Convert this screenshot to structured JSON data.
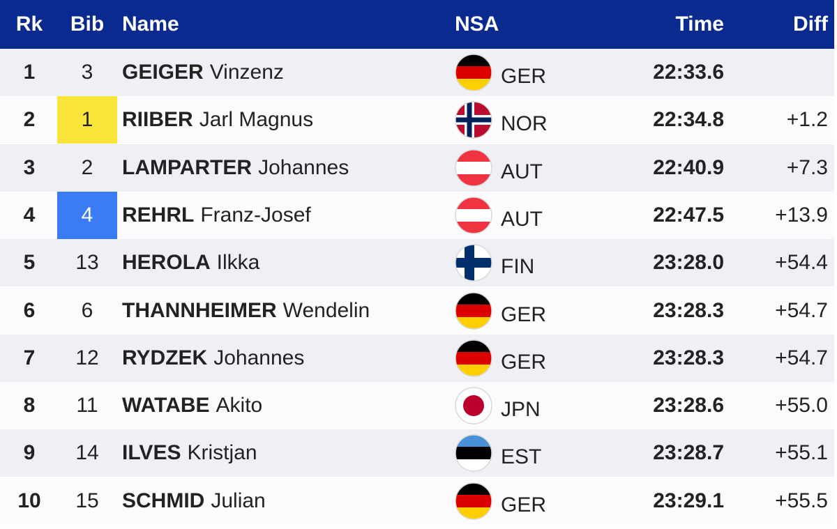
{
  "header": {
    "rk": "Rk",
    "bib": "Bib",
    "name": "Name",
    "nsa": "NSA",
    "time": "Time",
    "diff": "Diff"
  },
  "rows": [
    {
      "rk": "1",
      "bib": "3",
      "last": "GEIGER",
      "first": "Vinzenz",
      "nsa": "GER",
      "time": "22:33.6",
      "flag": {
        "kind": "stripes",
        "colors": [
          "#000000",
          "#dd0000",
          "#ffce00"
        ]
      }
    },
    {
      "rk": "2",
      "bib": "1",
      "bib_color": "#f9e43a",
      "last": "RIIBER",
      "first": "Jarl Magnus",
      "nsa": "NOR",
      "time": "22:34.8",
      "diff": "+1.2",
      "flag": {
        "kind": "cross",
        "colors": [
          "#ba0c2f",
          "#ffffff",
          "#00205b"
        ]
      }
    },
    {
      "rk": "3",
      "bib": "2",
      "last": "LAMPARTER",
      "first": "Johannes",
      "nsa": "AUT",
      "time": "22:40.9",
      "diff": "+7.3",
      "flag": {
        "kind": "stripes",
        "colors": [
          "#ef3340",
          "#ffffff",
          "#ef3340"
        ]
      }
    },
    {
      "rk": "4",
      "bib": "4",
      "bib_color": "#3b7bf5",
      "bib_text_color": "#ffffff",
      "last": "REHRL",
      "first": "Franz-Josef",
      "nsa": "AUT",
      "time": "22:47.5",
      "diff": "+13.9",
      "flag": {
        "kind": "stripes",
        "colors": [
          "#ef3340",
          "#ffffff",
          "#ef3340"
        ]
      }
    },
    {
      "rk": "5",
      "bib": "13",
      "last": "HEROLA",
      "first": "Ilkka",
      "nsa": "FIN",
      "time": "23:28.0",
      "diff": "+54.4",
      "flag": {
        "kind": "cross",
        "colors": [
          "#ffffff",
          "#002f6c",
          "#002f6c"
        ]
      }
    },
    {
      "rk": "6",
      "bib": "6",
      "last": "THANNHEIMER",
      "first": "Wendelin",
      "nsa": "GER",
      "time": "23:28.3",
      "diff": "+54.7",
      "flag": {
        "kind": "stripes",
        "colors": [
          "#000000",
          "#dd0000",
          "#ffce00"
        ]
      }
    },
    {
      "rk": "7",
      "bib": "12",
      "last": "RYDZEK",
      "first": "Johannes",
      "nsa": "GER",
      "time": "23:28.3",
      "diff": "+54.7",
      "flag": {
        "kind": "stripes",
        "colors": [
          "#000000",
          "#dd0000",
          "#ffce00"
        ]
      }
    },
    {
      "rk": "8",
      "bib": "11",
      "last": "WATABE",
      "first": "Akito",
      "nsa": "JPN",
      "time": "23:28.6",
      "diff": "+55.0",
      "flag": {
        "kind": "disc",
        "colors": [
          "#ffffff",
          "#bc002d"
        ]
      }
    },
    {
      "rk": "9",
      "bib": "14",
      "last": "ILVES",
      "first": "Kristjan",
      "nsa": "EST",
      "time": "23:28.7",
      "diff": "+55.1",
      "flag": {
        "kind": "stripes",
        "colors": [
          "#4891d9",
          "#000000",
          "#ffffff"
        ]
      }
    },
    {
      "rk": "10",
      "bib": "15",
      "last": "SCHMID",
      "first": "Julian",
      "nsa": "GER",
      "time": "23:29.1",
      "diff": "+55.5",
      "flag": {
        "kind": "stripes",
        "colors": [
          "#000000",
          "#dd0000",
          "#ffce00"
        ]
      }
    }
  ]
}
